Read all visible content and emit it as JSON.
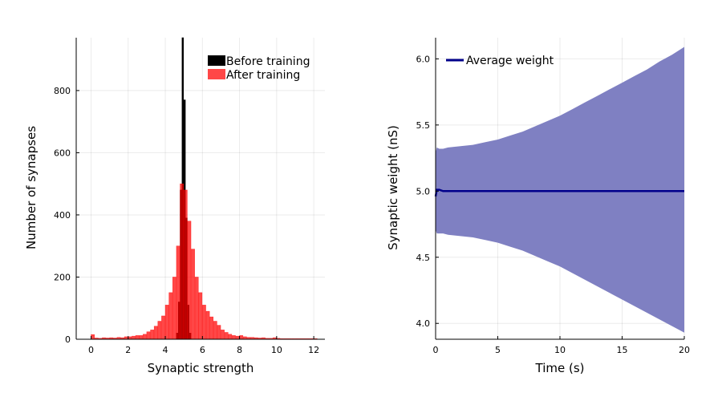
{
  "chart_data": [
    {
      "type": "bar",
      "xlabel": "Synaptic strength",
      "ylabel": "Number of synapses",
      "xlim": [
        -0.8,
        12.6
      ],
      "ylim": [
        0,
        970
      ],
      "xticks": [
        0,
        2,
        4,
        6,
        8,
        10,
        12
      ],
      "yticks": [
        0,
        200,
        400,
        600,
        800
      ],
      "grid": true,
      "legend_position": "top-right",
      "series": [
        {
          "name": "Before training",
          "color": "#000000",
          "bin_width": 0.1,
          "bins": [
            {
              "x": 4.6,
              "y": 20
            },
            {
              "x": 4.7,
              "y": 120
            },
            {
              "x": 4.8,
              "y": 480
            },
            {
              "x": 4.9,
              "y": 970
            },
            {
              "x": 5.0,
              "y": 770
            },
            {
              "x": 5.1,
              "y": 390
            },
            {
              "x": 5.2,
              "y": 110
            },
            {
              "x": 5.3,
              "y": 20
            }
          ]
        },
        {
          "name": "After training",
          "color": "#ff0000",
          "bin_width": 0.2,
          "bins": [
            {
              "x": 0.0,
              "y": 15
            },
            {
              "x": 0.2,
              "y": 4
            },
            {
              "x": 0.4,
              "y": 3
            },
            {
              "x": 0.6,
              "y": 5
            },
            {
              "x": 0.8,
              "y": 4
            },
            {
              "x": 1.0,
              "y": 5
            },
            {
              "x": 1.2,
              "y": 4
            },
            {
              "x": 1.4,
              "y": 6
            },
            {
              "x": 1.6,
              "y": 5
            },
            {
              "x": 1.8,
              "y": 8
            },
            {
              "x": 2.0,
              "y": 8
            },
            {
              "x": 2.2,
              "y": 10
            },
            {
              "x": 2.4,
              "y": 12
            },
            {
              "x": 2.6,
              "y": 12
            },
            {
              "x": 2.8,
              "y": 16
            },
            {
              "x": 3.0,
              "y": 24
            },
            {
              "x": 3.2,
              "y": 30
            },
            {
              "x": 3.4,
              "y": 42
            },
            {
              "x": 3.6,
              "y": 58
            },
            {
              "x": 3.8,
              "y": 75
            },
            {
              "x": 4.0,
              "y": 110
            },
            {
              "x": 4.2,
              "y": 150
            },
            {
              "x": 4.4,
              "y": 200
            },
            {
              "x": 4.6,
              "y": 300
            },
            {
              "x": 4.8,
              "y": 500
            },
            {
              "x": 5.0,
              "y": 480
            },
            {
              "x": 5.2,
              "y": 380
            },
            {
              "x": 5.4,
              "y": 290
            },
            {
              "x": 5.6,
              "y": 200
            },
            {
              "x": 5.8,
              "y": 150
            },
            {
              "x": 6.0,
              "y": 110
            },
            {
              "x": 6.2,
              "y": 90
            },
            {
              "x": 6.4,
              "y": 72
            },
            {
              "x": 6.6,
              "y": 58
            },
            {
              "x": 6.8,
              "y": 45
            },
            {
              "x": 7.0,
              "y": 30
            },
            {
              "x": 7.2,
              "y": 22
            },
            {
              "x": 7.4,
              "y": 16
            },
            {
              "x": 7.6,
              "y": 12
            },
            {
              "x": 7.8,
              "y": 10
            },
            {
              "x": 8.0,
              "y": 12
            },
            {
              "x": 8.2,
              "y": 8
            },
            {
              "x": 8.4,
              "y": 6
            },
            {
              "x": 8.6,
              "y": 6
            },
            {
              "x": 8.8,
              "y": 5
            },
            {
              "x": 9.0,
              "y": 4
            },
            {
              "x": 9.2,
              "y": 5
            },
            {
              "x": 9.4,
              "y": 3
            },
            {
              "x": 9.6,
              "y": 3
            },
            {
              "x": 9.8,
              "y": 5
            },
            {
              "x": 10.0,
              "y": 3
            },
            {
              "x": 10.2,
              "y": 2
            },
            {
              "x": 10.4,
              "y": 2
            },
            {
              "x": 10.6,
              "y": 2
            },
            {
              "x": 10.8,
              "y": 2
            },
            {
              "x": 11.0,
              "y": 2
            },
            {
              "x": 11.2,
              "y": 2
            },
            {
              "x": 11.4,
              "y": 2
            },
            {
              "x": 11.6,
              "y": 2
            },
            {
              "x": 11.8,
              "y": 2
            },
            {
              "x": 12.0,
              "y": 2
            }
          ]
        }
      ]
    },
    {
      "type": "area",
      "xlabel": "Time (s)",
      "ylabel": "Synaptic weight (nS)",
      "xlim": [
        0,
        20
      ],
      "ylim": [
        3.88,
        6.16
      ],
      "xticks": [
        0,
        5,
        10,
        15,
        20
      ],
      "yticks": [
        4.0,
        4.5,
        5.0,
        5.5,
        6.0
      ],
      "grid": true,
      "legend_position": "top-left",
      "band": {
        "color": "#7f80c2",
        "x": [
          0,
          0.1,
          0.3,
          0.6,
          1,
          2,
          3,
          4,
          5,
          6,
          7,
          8,
          9,
          10,
          11,
          12,
          13,
          14,
          15,
          16,
          17,
          18,
          19,
          20
        ],
        "upper": [
          5.29,
          5.33,
          5.32,
          5.32,
          5.33,
          5.34,
          5.35,
          5.37,
          5.39,
          5.42,
          5.45,
          5.49,
          5.53,
          5.57,
          5.62,
          5.67,
          5.72,
          5.77,
          5.82,
          5.87,
          5.92,
          5.98,
          6.03,
          6.09
        ],
        "lower": [
          4.71,
          4.68,
          4.68,
          4.68,
          4.67,
          4.66,
          4.65,
          4.63,
          4.61,
          4.58,
          4.55,
          4.51,
          4.47,
          4.43,
          4.38,
          4.33,
          4.28,
          4.23,
          4.18,
          4.13,
          4.08,
          4.03,
          3.98,
          3.93
        ]
      },
      "series": [
        {
          "name": "Average weight",
          "color": "#00008b",
          "x": [
            0,
            0.1,
            0.3,
            0.6,
            1,
            2,
            3,
            4,
            5,
            6,
            7,
            8,
            9,
            10,
            11,
            12,
            13,
            14,
            15,
            16,
            17,
            18,
            19,
            20
          ],
          "y": [
            4.96,
            5.01,
            5.01,
            5.0,
            5.0,
            5.0,
            5.0,
            5.0,
            5.0,
            5.0,
            5.0,
            5.0,
            5.0,
            5.0,
            5.0,
            5.0,
            5.0,
            5.0,
            5.0,
            5.0,
            5.0,
            5.0,
            5.0,
            5.0
          ]
        }
      ]
    }
  ]
}
